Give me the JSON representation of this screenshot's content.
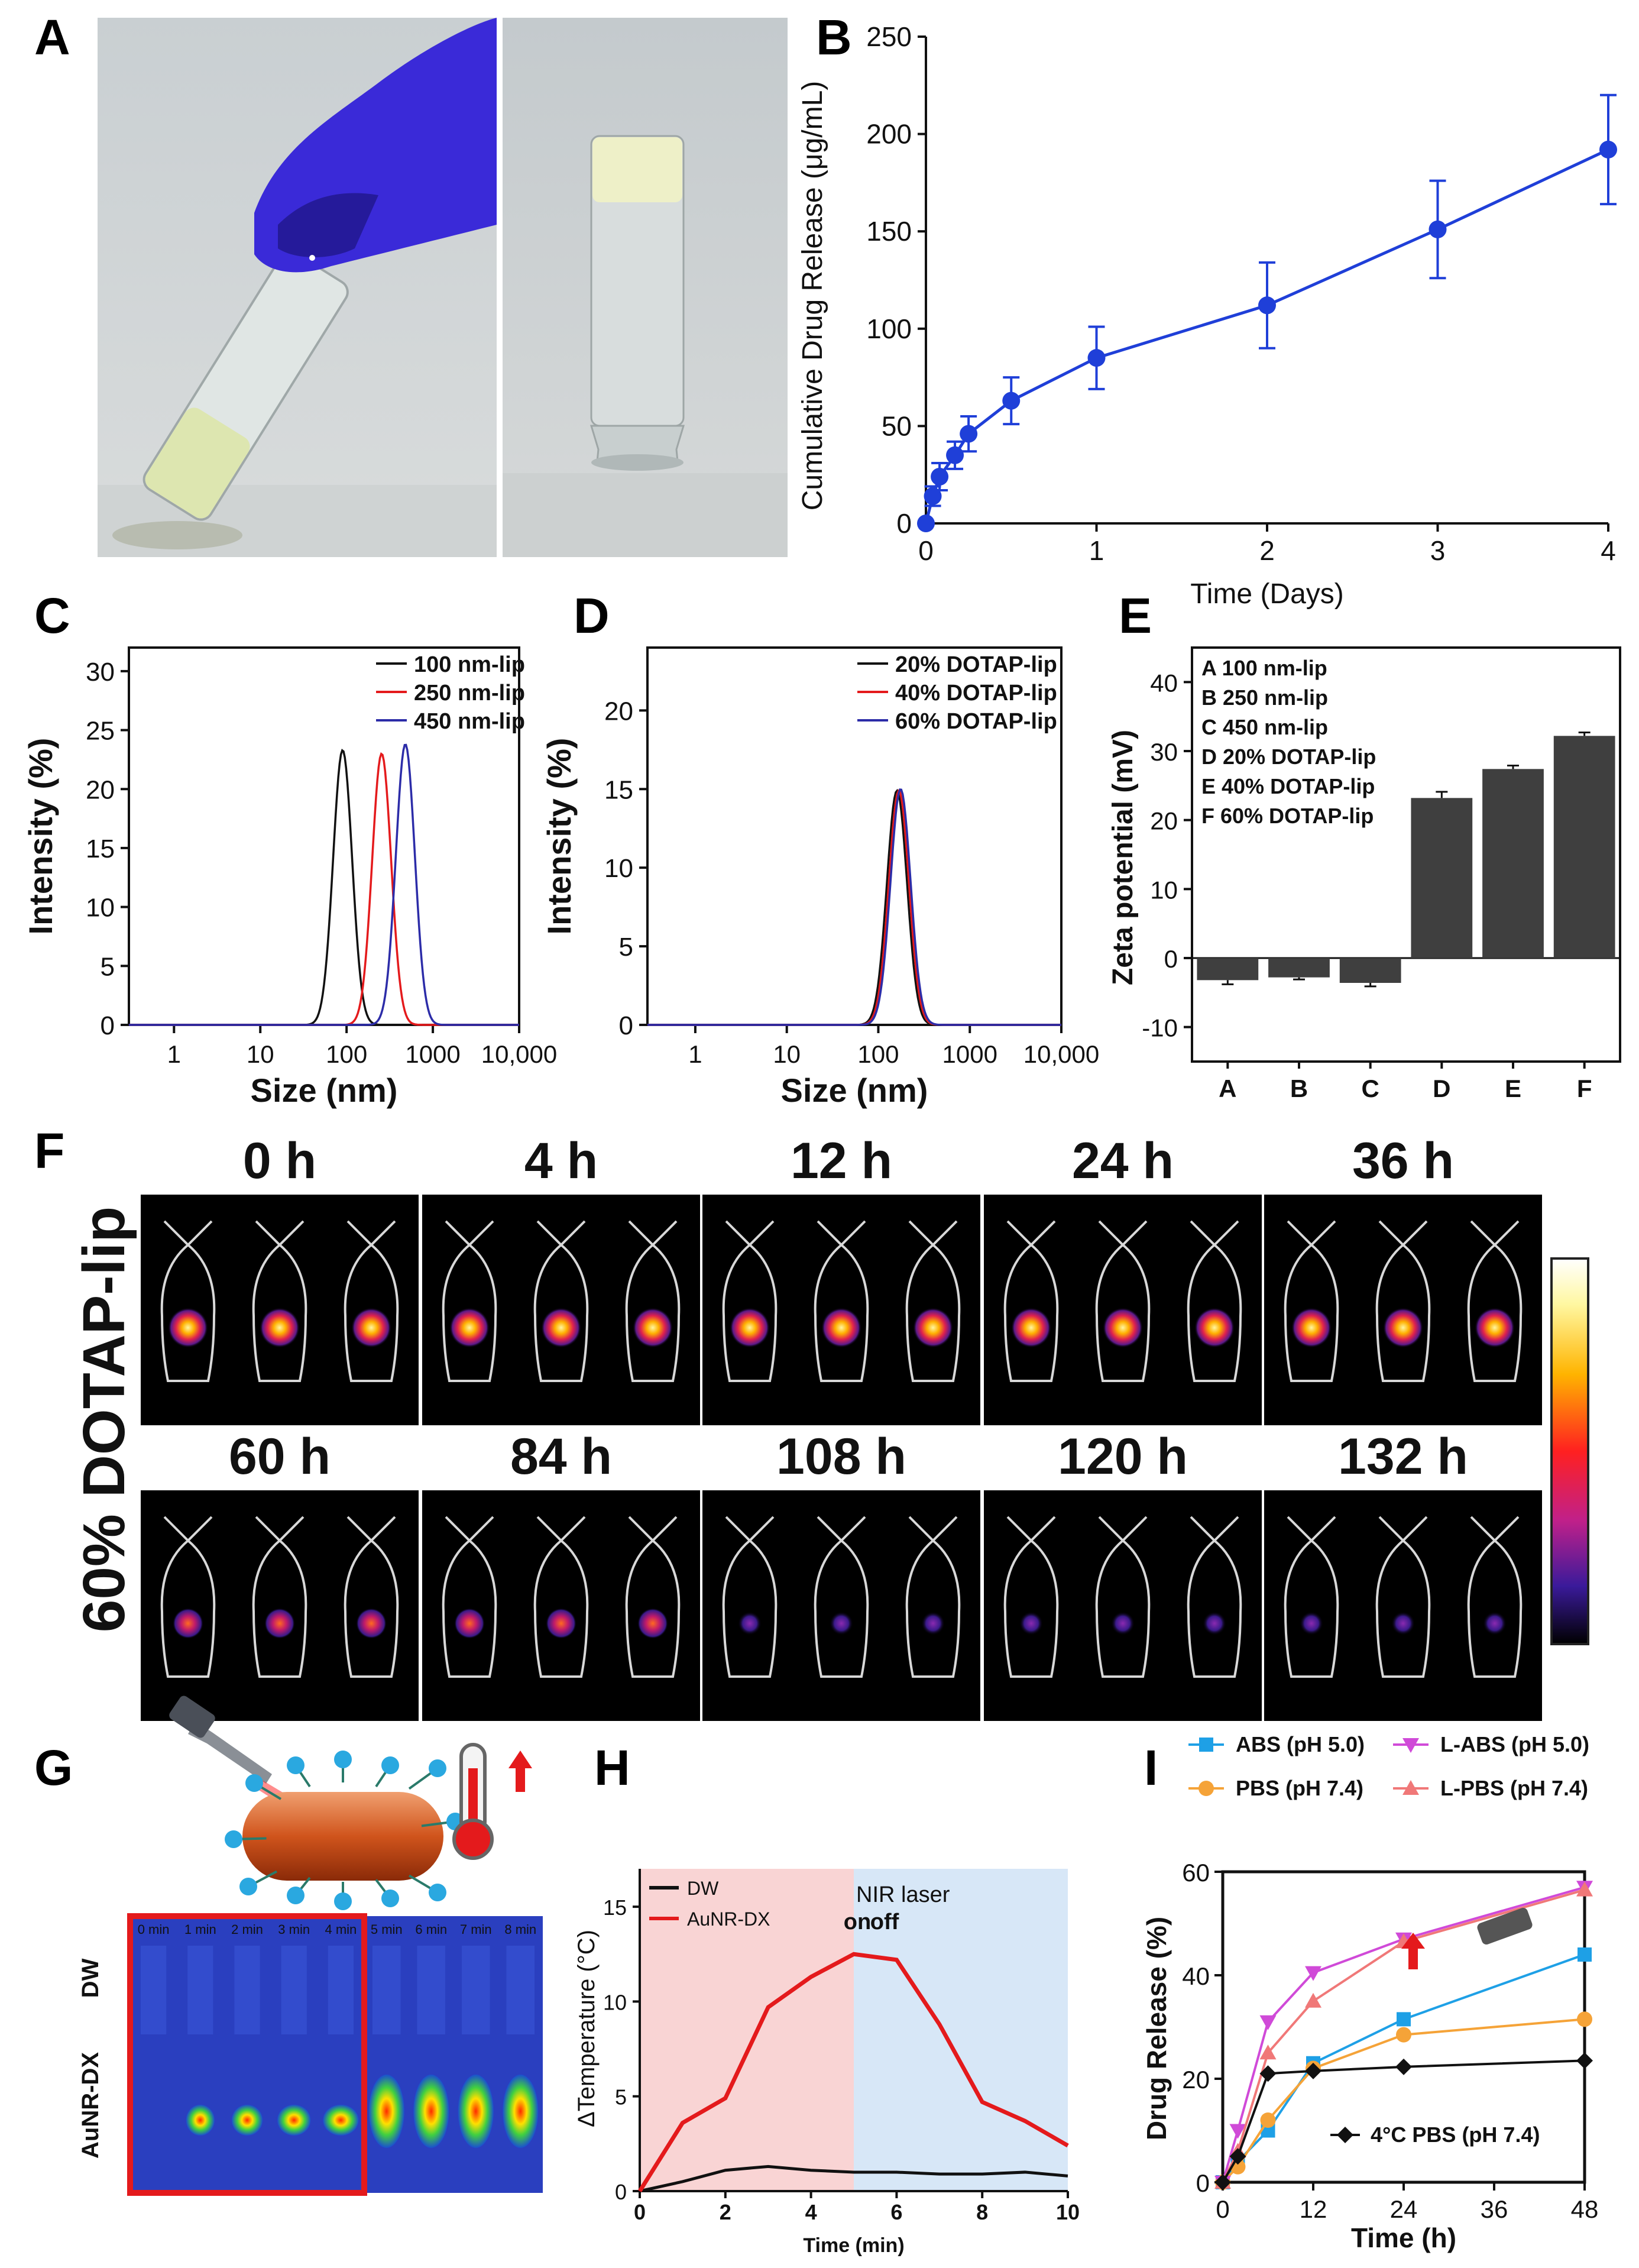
{
  "panels": {
    "A": "A",
    "B": "B",
    "C": "C",
    "D": "D",
    "E": "E",
    "F": "F",
    "G": "G",
    "H": "H",
    "I": "I"
  },
  "colors": {
    "blue": "#1f3fd8",
    "black": "#111111",
    "red": "#e41a1c",
    "navy": "#2c2ca8",
    "bar": "#3f3f3f",
    "cyan": "#1ea0e6",
    "orange": "#f5a338",
    "violet": "#d04ad8",
    "pink": "#f07878",
    "onRed": "#e41a1c",
    "offBlue": "#2a6fb5"
  },
  "chart_data": [
    {
      "id": "B",
      "type": "line",
      "x": [
        0,
        0.04,
        0.08,
        0.17,
        0.25,
        0.5,
        1,
        2,
        3,
        4
      ],
      "values": [
        0,
        14,
        24,
        35,
        46,
        63,
        85,
        112,
        151,
        192
      ],
      "errors": [
        0,
        5,
        7,
        7,
        9,
        12,
        16,
        22,
        25,
        28
      ],
      "xlabel": "Time (Days)",
      "ylabel": "Cumulative Drug Release (μg/mL)",
      "xlim": [
        0,
        4
      ],
      "ylim": [
        0,
        250
      ],
      "xticks": [
        0,
        1,
        2,
        3,
        4
      ],
      "yticks": [
        0,
        50,
        100,
        150,
        200,
        250
      ]
    },
    {
      "id": "C",
      "type": "line",
      "xlabel": "Size (nm)",
      "ylabel": "Intensity (%)",
      "xscale": "log",
      "xlim": [
        0.3,
        10000
      ],
      "ylim": [
        0,
        32
      ],
      "xticks": [
        "1",
        "10",
        "100",
        "1000",
        "10,000"
      ],
      "yticks": [
        0,
        5,
        10,
        15,
        20,
        25,
        30
      ],
      "series": [
        {
          "name": "100 nm-lip",
          "peak_size": 90,
          "peak_value": 23.3
        },
        {
          "name": "250 nm-lip",
          "peak_size": 255,
          "peak_value": 23.0
        },
        {
          "name": "450 nm-lip",
          "peak_size": 480,
          "peak_value": 23.8
        }
      ]
    },
    {
      "id": "D",
      "type": "line",
      "xlabel": "Size (nm)",
      "ylabel": "Intensity (%)",
      "xscale": "log",
      "xlim": [
        0.3,
        10000
      ],
      "ylim": [
        0,
        24
      ],
      "xticks": [
        "1",
        "10",
        "100",
        "1000",
        "10,000"
      ],
      "yticks": [
        0,
        5,
        10,
        15,
        20
      ],
      "series": [
        {
          "name": "20% DOTAP-lip",
          "peak_size": 160,
          "peak_value": 14.9
        },
        {
          "name": "40% DOTAP-lip",
          "peak_size": 168,
          "peak_value": 14.9
        },
        {
          "name": "60% DOTAP-lip",
          "peak_size": 175,
          "peak_value": 15.0
        }
      ]
    },
    {
      "id": "E",
      "type": "bar",
      "categories": [
        "A",
        "B",
        "C",
        "D",
        "E",
        "F"
      ],
      "legend": [
        "A  100 nm-lip",
        "B  250 nm-lip",
        "C  450 nm-lip",
        "D  20% DOTAP-lip",
        "E  40% DOTAP-lip",
        "F  60% DOTAP-lip"
      ],
      "values": [
        -3.2,
        -2.8,
        -3.6,
        23.2,
        27.4,
        32.2
      ],
      "errors": [
        0.6,
        0.3,
        0.5,
        0.9,
        0.5,
        0.5
      ],
      "ylabel": "Zeta potential (mV)",
      "ylim": [
        -15,
        45
      ],
      "yticks": [
        -10,
        0,
        10,
        20,
        30,
        40
      ]
    },
    {
      "id": "H",
      "type": "line",
      "x": [
        0,
        1,
        2,
        3,
        4,
        5,
        6,
        7,
        8,
        9,
        10
      ],
      "series": [
        {
          "name": "DW",
          "values": [
            0,
            0.5,
            1.1,
            1.3,
            1.1,
            1.0,
            1.0,
            0.9,
            0.9,
            1.0,
            0.8
          ]
        },
        {
          "name": "AuNR-DX",
          "values": [
            0,
            3.6,
            4.9,
            9.7,
            11.3,
            12.5,
            12.2,
            8.8,
            4.7,
            3.7,
            2.4
          ]
        }
      ],
      "xlabel": "Time (min)",
      "ylabel": "ΔTemperature (°C)",
      "xlim": [
        0,
        10
      ],
      "ylim": [
        0,
        17
      ],
      "xticks": [
        0,
        2,
        4,
        6,
        8,
        10
      ],
      "yticks": [
        0,
        5,
        10,
        15
      ],
      "annotations": [
        "NIR laser",
        "on",
        "off"
      ]
    },
    {
      "id": "I",
      "type": "line",
      "x": [
        0,
        2,
        6,
        12,
        24,
        48
      ],
      "series": [
        {
          "name": "ABS (pH 5.0)",
          "values": [
            0,
            4,
            10,
            23,
            31.5,
            44
          ]
        },
        {
          "name": "PBS (pH 7.4)",
          "values": [
            0,
            3,
            12,
            22,
            28.5,
            31.5
          ]
        },
        {
          "name": "L-ABS (pH 5.0)",
          "values": [
            0,
            10,
            31,
            40.5,
            47,
            57
          ]
        },
        {
          "name": "L-PBS (pH 7.4)",
          "values": [
            0,
            6,
            25,
            35,
            46.5,
            56.5
          ]
        },
        {
          "name": "4°C PBS (pH 7.4)",
          "values": [
            0,
            5,
            21,
            21.5,
            22.3,
            23.5
          ]
        }
      ],
      "xlabel": "Time (h)",
      "ylabel": "Drug Release (%)",
      "xlim": [
        0,
        48
      ],
      "ylim": [
        0,
        60
      ],
      "xticks": [
        0,
        12,
        24,
        36,
        48
      ],
      "yticks": [
        0,
        20,
        40,
        60
      ]
    }
  ],
  "imaging": {
    "row_label": "60% DOTAP-lip",
    "top_times": [
      "0 h",
      "4 h",
      "12 h",
      "24 h",
      "36 h"
    ],
    "bottom_times": [
      "60 h",
      "84 h",
      "108 h",
      "120 h",
      "132 h"
    ]
  },
  "thermal": {
    "left_times": [
      "0 min",
      "1 min",
      "2 min",
      "3 min",
      "4 min"
    ],
    "right_times": [
      "5 min",
      "6 min",
      "7 min",
      "8 min"
    ],
    "rows": [
      "DW",
      "AuNR-DX"
    ]
  }
}
